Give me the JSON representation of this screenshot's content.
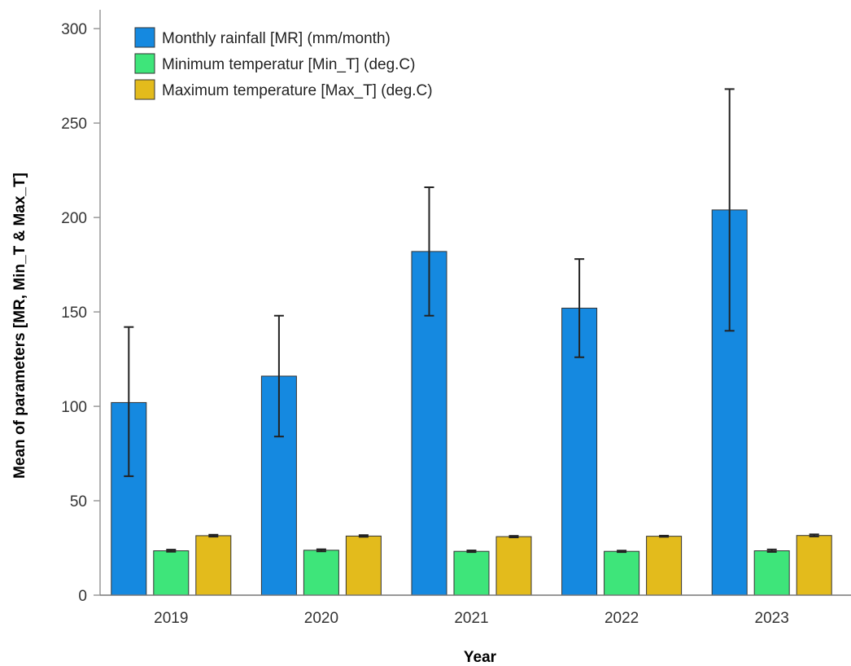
{
  "chart_data": {
    "type": "bar",
    "xlabel": "Year",
    "ylabel": "Mean of parameters [MR, Min_T & Max_T]",
    "categories": [
      "2019",
      "2020",
      "2021",
      "2022",
      "2023"
    ],
    "ylim": [
      0,
      310
    ],
    "yticks": [
      0,
      50,
      100,
      150,
      200,
      250,
      300
    ],
    "legend_position": "top-left",
    "grid": false,
    "series": [
      {
        "name": "Monthly rainfall [MR] (mm/month)",
        "color": "#1589e0",
        "values": [
          102,
          116,
          182,
          152,
          204
        ],
        "error_low": [
          63,
          84,
          148,
          126,
          140
        ],
        "error_high": [
          142,
          148,
          216,
          178,
          268
        ]
      },
      {
        "name": "Minimum temperatur [Min_T] (deg.C)",
        "color": "#3ee57a",
        "values": [
          23.5,
          23.8,
          23.2,
          23.2,
          23.5
        ],
        "error_low": [
          23.0,
          23.2,
          22.8,
          22.8,
          22.9
        ],
        "error_high": [
          24.1,
          24.3,
          23.7,
          23.6,
          24.2
        ]
      },
      {
        "name": "Maximum temperature [Max_T] (deg.C)",
        "color": "#e3bb1c",
        "values": [
          31.5,
          31.3,
          31.0,
          31.2,
          31.6
        ],
        "error_low": [
          31.0,
          30.9,
          30.6,
          30.9,
          31.1
        ],
        "error_high": [
          32.0,
          31.8,
          31.4,
          31.5,
          32.2
        ]
      }
    ]
  }
}
